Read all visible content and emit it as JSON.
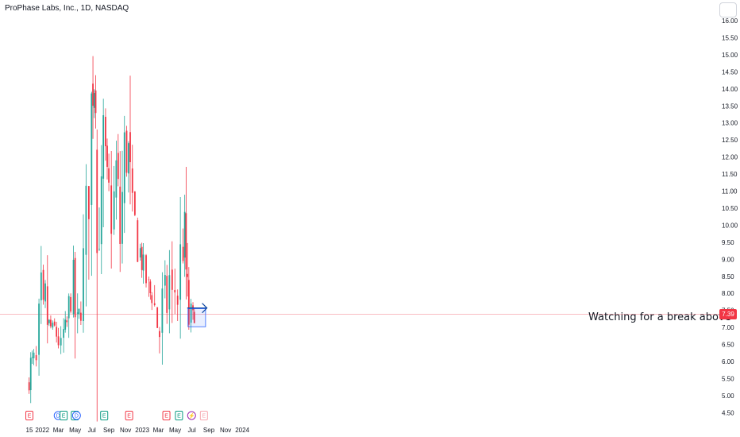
{
  "title": "ProPhase Labs, Inc., 1D, NASDAQ",
  "annotation": "Watching for a break above",
  "last_price_label": "7.39",
  "colors": {
    "up": "#26a69a",
    "down": "#f23645",
    "box": "#2962ff",
    "arrow": "#0d47a1"
  },
  "chart_data": {
    "type": "candlestick",
    "y_ticks": [
      "4.50",
      "5.00",
      "5.50",
      "6.00",
      "6.50",
      "7.00",
      "7.50",
      "8.00",
      "8.50",
      "9.00",
      "9.50",
      "10.00",
      "10.50",
      "11.00",
      "11.50",
      "12.00",
      "12.50",
      "13.00",
      "13.50",
      "14.00",
      "14.50",
      "15.00",
      "15.50",
      "16.00"
    ],
    "ylim": [
      4.3,
      16.3
    ],
    "x_ticks": [
      "15",
      "2022",
      "Mar",
      "May",
      "Jul",
      "Sep",
      "Nov",
      "2023",
      "Mar",
      "May",
      "Jul",
      "Sep",
      "Nov",
      "2024"
    ],
    "x_tick_dates": [
      "2021-11-15",
      "2022-01-01",
      "2022-03-01",
      "2022-05-01",
      "2022-07-01",
      "2022-09-01",
      "2022-11-01",
      "2023-01-01",
      "2023-03-01",
      "2023-05-01",
      "2023-07-01",
      "2023-09-01",
      "2023-11-01",
      "2024-01-01"
    ],
    "close_path": [
      [
        "2021-11-08",
        5.3
      ],
      [
        "2021-11-20",
        5.9
      ],
      [
        "2021-12-01",
        6.1
      ],
      [
        "2021-12-10",
        5.9
      ],
      [
        "2021-12-20",
        6.8
      ],
      [
        "2021-12-28",
        7.7
      ],
      [
        "2022-01-05",
        7.5
      ],
      [
        "2022-01-12",
        7.9
      ],
      [
        "2022-01-20",
        7.2
      ],
      [
        "2022-02-01",
        7.0
      ],
      [
        "2022-02-15",
        7.0
      ],
      [
        "2022-03-01",
        6.6
      ],
      [
        "2022-03-10",
        6.4
      ],
      [
        "2022-03-20",
        6.8
      ],
      [
        "2022-04-01",
        7.1
      ],
      [
        "2022-04-15",
        8.0
      ],
      [
        "2022-04-25",
        8.4
      ],
      [
        "2022-05-01",
        7.4
      ],
      [
        "2022-05-10",
        7.0
      ],
      [
        "2022-05-15",
        7.3
      ],
      [
        "2022-05-22",
        7.6
      ],
      [
        "2022-05-31",
        8.7
      ],
      [
        "2022-06-10",
        10.0
      ],
      [
        "2022-06-20",
        11.5
      ],
      [
        "2022-06-30",
        13.3
      ],
      [
        "2022-07-05",
        14.3
      ],
      [
        "2022-07-10",
        14.1
      ],
      [
        "2022-07-15",
        13.8
      ],
      [
        "2022-07-20",
        9.2
      ],
      [
        "2022-07-28",
        10.2
      ],
      [
        "2022-08-05",
        10.8
      ],
      [
        "2022-08-12",
        12.3
      ],
      [
        "2022-08-20",
        11.6
      ],
      [
        "2022-09-01",
        11.0
      ],
      [
        "2022-09-10",
        10.3
      ],
      [
        "2022-09-20",
        10.8
      ],
      [
        "2022-09-28",
        11.6
      ],
      [
        "2022-10-05",
        10.8
      ],
      [
        "2022-10-12",
        9.6
      ],
      [
        "2022-10-20",
        10.8
      ],
      [
        "2022-10-28",
        12.0
      ],
      [
        "2022-11-05",
        11.8
      ],
      [
        "2022-11-12",
        12.2
      ],
      [
        "2022-11-18",
        10.8
      ],
      [
        "2022-11-26",
        10.2
      ],
      [
        "2022-12-05",
        10.2
      ],
      [
        "2022-12-15",
        9.6
      ],
      [
        "2022-12-25",
        9.2
      ],
      [
        "2023-01-05",
        8.7
      ],
      [
        "2023-01-15",
        8.4
      ],
      [
        "2023-01-25",
        8.1
      ],
      [
        "2023-02-05",
        7.9
      ],
      [
        "2023-02-15",
        7.6
      ],
      [
        "2023-02-25",
        7.1
      ],
      [
        "2023-03-05",
        6.8
      ],
      [
        "2023-03-15",
        7.6
      ],
      [
        "2023-03-25",
        8.0
      ],
      [
        "2023-04-01",
        7.6
      ],
      [
        "2023-04-10",
        8.4
      ],
      [
        "2023-04-20",
        7.7
      ],
      [
        "2023-04-30",
        8.1
      ],
      [
        "2023-05-10",
        7.8
      ],
      [
        "2023-05-20",
        8.9
      ],
      [
        "2023-05-30",
        9.3
      ],
      [
        "2023-06-05",
        9.8
      ],
      [
        "2023-06-10",
        8.6
      ],
      [
        "2023-06-15",
        7.6
      ],
      [
        "2023-06-20",
        7.2
      ],
      [
        "2023-06-28",
        7.4
      ],
      [
        "2023-07-05",
        7.3
      ],
      [
        "2023-07-10",
        7.4
      ]
    ],
    "last_price": 7.39,
    "annotations": {
      "box": {
        "x0": "2023-06-17",
        "x1": "2023-08-20",
        "y0": 7.02,
        "y1": 7.55
      },
      "arrow": {
        "x0": "2023-06-14",
        "x1": "2023-08-25",
        "y": 7.57
      },
      "text": "Watching for a break above"
    },
    "events": [
      {
        "date": "2021-11-15",
        "label": "E",
        "kind": "earnings"
      },
      {
        "date": "2022-02-28",
        "label": "D",
        "kind": "dividend"
      },
      {
        "date": "2022-03-20",
        "label": "E",
        "kind": "earnings-green"
      },
      {
        "date": "2022-04-30",
        "label": "E",
        "kind": "earnings-green"
      },
      {
        "date": "2022-05-06",
        "label": "D",
        "kind": "dividend"
      },
      {
        "date": "2022-08-15",
        "label": "E",
        "kind": "earnings-green"
      },
      {
        "date": "2022-11-14",
        "label": "E",
        "kind": "earnings"
      },
      {
        "date": "2023-03-30",
        "label": "E",
        "kind": "earnings"
      },
      {
        "date": "2023-05-15",
        "label": "E",
        "kind": "earnings-green"
      },
      {
        "date": "2023-06-30",
        "label": "⚡",
        "kind": "split"
      },
      {
        "date": "2023-08-14",
        "label": "E",
        "kind": "earnings-future"
      }
    ]
  }
}
